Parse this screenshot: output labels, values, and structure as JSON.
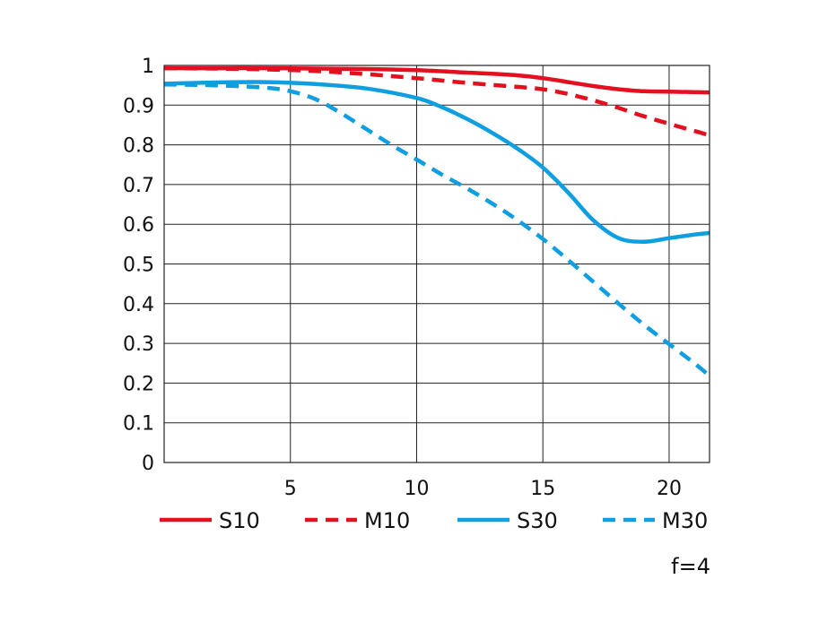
{
  "chart_data": {
    "type": "line",
    "title": "",
    "xlabel": "",
    "ylabel": "",
    "xlim": [
      0,
      21.6
    ],
    "ylim": [
      0,
      1
    ],
    "grid": true,
    "x_ticks": [
      5,
      10,
      15,
      20
    ],
    "x_tick_labels": [
      "5",
      "10",
      "15",
      "20"
    ],
    "y_ticks": [
      0,
      0.1,
      0.2,
      0.3,
      0.4,
      0.5,
      0.6,
      0.7,
      0.8,
      0.9,
      1
    ],
    "y_tick_labels": [
      "0",
      "0.1",
      "0.2",
      "0.3",
      "0.4",
      "0.5",
      "0.6",
      "0.7",
      "0.8",
      "0.9",
      "1"
    ],
    "legend_position": "bottom",
    "annotation": "f=4",
    "series": [
      {
        "name": "S10",
        "color": "#e3101f",
        "dashed": false,
        "points": [
          [
            0,
            0.993
          ],
          [
            2,
            0.993
          ],
          [
            4,
            0.993
          ],
          [
            6,
            0.992
          ],
          [
            8,
            0.991
          ],
          [
            10,
            0.988
          ],
          [
            12,
            0.982
          ],
          [
            14,
            0.975
          ],
          [
            15,
            0.968
          ],
          [
            16,
            0.958
          ],
          [
            17,
            0.948
          ],
          [
            18,
            0.94
          ],
          [
            19,
            0.935
          ],
          [
            20,
            0.934
          ],
          [
            21.6,
            0.932
          ]
        ]
      },
      {
        "name": "M10",
        "color": "#e3101f",
        "dashed": true,
        "points": [
          [
            0,
            0.993
          ],
          [
            2,
            0.992
          ],
          [
            4,
            0.99
          ],
          [
            6,
            0.986
          ],
          [
            8,
            0.978
          ],
          [
            10,
            0.968
          ],
          [
            12,
            0.956
          ],
          [
            14,
            0.946
          ],
          [
            15,
            0.94
          ],
          [
            16,
            0.928
          ],
          [
            17,
            0.912
          ],
          [
            18,
            0.893
          ],
          [
            19,
            0.872
          ],
          [
            20,
            0.853
          ],
          [
            21,
            0.835
          ],
          [
            21.6,
            0.824
          ]
        ]
      },
      {
        "name": "S30",
        "color": "#0f9ee0",
        "dashed": false,
        "points": [
          [
            0,
            0.954
          ],
          [
            2,
            0.957
          ],
          [
            4,
            0.958
          ],
          [
            6,
            0.953
          ],
          [
            8,
            0.942
          ],
          [
            10,
            0.918
          ],
          [
            11,
            0.895
          ],
          [
            12,
            0.865
          ],
          [
            13,
            0.83
          ],
          [
            14,
            0.79
          ],
          [
            15,
            0.743
          ],
          [
            16,
            0.68
          ],
          [
            17,
            0.61
          ],
          [
            18,
            0.565
          ],
          [
            19,
            0.556
          ],
          [
            20,
            0.565
          ],
          [
            21,
            0.574
          ],
          [
            21.6,
            0.578
          ]
        ]
      },
      {
        "name": "M30",
        "color": "#0f9ee0",
        "dashed": true,
        "points": [
          [
            0,
            0.952
          ],
          [
            2,
            0.95
          ],
          [
            4,
            0.944
          ],
          [
            5,
            0.935
          ],
          [
            6,
            0.915
          ],
          [
            7,
            0.88
          ],
          [
            8,
            0.84
          ],
          [
            9,
            0.8
          ],
          [
            10,
            0.763
          ],
          [
            11,
            0.725
          ],
          [
            12,
            0.69
          ],
          [
            13,
            0.652
          ],
          [
            14,
            0.61
          ],
          [
            15,
            0.563
          ],
          [
            16,
            0.51
          ],
          [
            17,
            0.455
          ],
          [
            18,
            0.4
          ],
          [
            19,
            0.347
          ],
          [
            20,
            0.298
          ],
          [
            21,
            0.25
          ],
          [
            21.6,
            0.218
          ]
        ]
      }
    ]
  }
}
